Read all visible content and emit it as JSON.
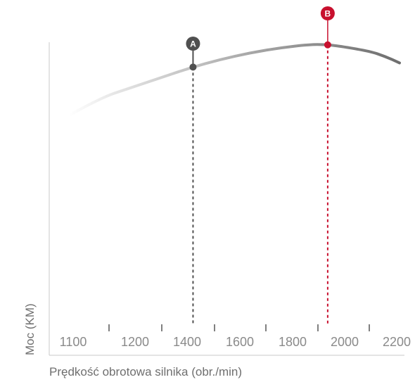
{
  "chart_data": {
    "type": "line",
    "title": "",
    "xlabel": "Prędkość obrotowa silnika (obr./min)",
    "ylabel": "Moc (KM)",
    "xlim": [
      1100,
      2200
    ],
    "ylim": [
      0,
      1
    ],
    "x_ticks": [
      1100,
      1200,
      1400,
      1600,
      1800,
      2000,
      2200
    ],
    "grid": false,
    "series": [
      {
        "x": [
          1100,
          1200,
          1300,
          1400,
          1500,
          1600,
          1700,
          1800,
          1900,
          1950,
          2000,
          2100,
          2150,
          2200
        ],
        "y": [
          0.72,
          0.77,
          0.8,
          0.83,
          0.86,
          0.885,
          0.905,
          0.92,
          0.93,
          0.93,
          0.925,
          0.91,
          0.895,
          0.875
        ]
      }
    ],
    "markers": [
      {
        "label": "A",
        "x": 1510,
        "color": "#505050"
      },
      {
        "label": "B",
        "x": 1960,
        "color": "#c8102e"
      }
    ]
  },
  "colors": {
    "curve_light": "#e4e4e4",
    "curve_mid": "#a7a7a7",
    "curve_dark": "#6e6e6e",
    "axis": "#c8c8c8",
    "marker_a": "#505050",
    "marker_b": "#c8102e"
  }
}
